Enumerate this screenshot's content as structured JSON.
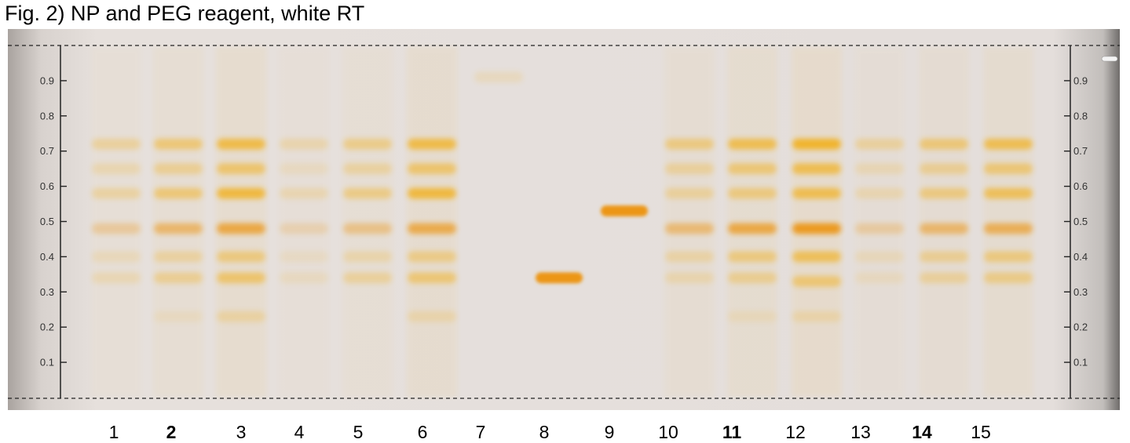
{
  "title": "Fig. 2) NP and PEG reagent, white RT",
  "colors": {
    "plate": "#e8e2de",
    "band_yellow": "#f2b01e",
    "band_orange": "#ec9612",
    "axis": "#222222"
  },
  "axis": {
    "ticks": [
      "0.1",
      "0.2",
      "0.3",
      "0.4",
      "0.5",
      "0.6",
      "0.7",
      "0.8",
      "0.9"
    ],
    "range": [
      0,
      1
    ]
  },
  "lanes": [
    {
      "label": "1",
      "bold": false,
      "bands": [
        [
          0.72,
          0.3
        ],
        [
          0.65,
          0.2
        ],
        [
          0.58,
          0.28
        ],
        [
          0.48,
          0.3
        ],
        [
          0.4,
          0.15
        ],
        [
          0.34,
          0.18
        ]
      ]
    },
    {
      "label": "2",
      "bold": true,
      "bands": [
        [
          0.72,
          0.5
        ],
        [
          0.65,
          0.35
        ],
        [
          0.58,
          0.5
        ],
        [
          0.48,
          0.55
        ],
        [
          0.4,
          0.28
        ],
        [
          0.34,
          0.35
        ],
        [
          0.23,
          0.1
        ]
      ]
    },
    {
      "label": "3",
      "bold": false,
      "bands": [
        [
          0.72,
          0.75
        ],
        [
          0.65,
          0.55
        ],
        [
          0.58,
          0.8
        ],
        [
          0.48,
          0.75
        ],
        [
          0.4,
          0.45
        ],
        [
          0.34,
          0.55
        ],
        [
          0.23,
          0.25
        ]
      ]
    },
    {
      "label": "4",
      "bold": false,
      "bands": [
        [
          0.72,
          0.22
        ],
        [
          0.65,
          0.12
        ],
        [
          0.58,
          0.2
        ],
        [
          0.48,
          0.2
        ],
        [
          0.4,
          0.1
        ],
        [
          0.34,
          0.12
        ]
      ]
    },
    {
      "label": "5",
      "bold": false,
      "bands": [
        [
          0.72,
          0.4
        ],
        [
          0.65,
          0.28
        ],
        [
          0.58,
          0.42
        ],
        [
          0.48,
          0.4
        ],
        [
          0.4,
          0.22
        ],
        [
          0.34,
          0.3
        ]
      ]
    },
    {
      "label": "6",
      "bold": false,
      "bands": [
        [
          0.72,
          0.75
        ],
        [
          0.65,
          0.55
        ],
        [
          0.58,
          0.8
        ],
        [
          0.48,
          0.7
        ],
        [
          0.4,
          0.4
        ],
        [
          0.34,
          0.5
        ],
        [
          0.23,
          0.2
        ]
      ]
    },
    {
      "label": "7",
      "bold": false,
      "bands": [
        [
          0.91,
          0.15
        ]
      ]
    },
    {
      "label": "8",
      "bold": false,
      "bands": [
        [
          0.34,
          1.0
        ]
      ]
    },
    {
      "label": "9",
      "bold": false,
      "bands": [
        [
          0.53,
          1.0
        ]
      ]
    },
    {
      "label": "10",
      "bold": false,
      "bands": [
        [
          0.72,
          0.45
        ],
        [
          0.65,
          0.3
        ],
        [
          0.58,
          0.3
        ],
        [
          0.48,
          0.5
        ],
        [
          0.4,
          0.25
        ],
        [
          0.34,
          0.2
        ]
      ]
    },
    {
      "label": "11",
      "bold": true,
      "bands": [
        [
          0.72,
          0.7
        ],
        [
          0.65,
          0.5
        ],
        [
          0.58,
          0.45
        ],
        [
          0.48,
          0.75
        ],
        [
          0.4,
          0.45
        ],
        [
          0.34,
          0.35
        ],
        [
          0.23,
          0.12
        ]
      ]
    },
    {
      "label": "12",
      "bold": false,
      "bands": [
        [
          0.72,
          0.9
        ],
        [
          0.65,
          0.7
        ],
        [
          0.58,
          0.7
        ],
        [
          0.48,
          0.95
        ],
        [
          0.4,
          0.65
        ],
        [
          0.33,
          0.5
        ],
        [
          0.23,
          0.2
        ]
      ]
    },
    {
      "label": "13",
      "bold": false,
      "bands": [
        [
          0.72,
          0.3
        ],
        [
          0.65,
          0.18
        ],
        [
          0.58,
          0.2
        ],
        [
          0.48,
          0.28
        ],
        [
          0.4,
          0.15
        ],
        [
          0.34,
          0.12
        ]
      ]
    },
    {
      "label": "14",
      "bold": true,
      "bands": [
        [
          0.72,
          0.5
        ],
        [
          0.65,
          0.35
        ],
        [
          0.58,
          0.45
        ],
        [
          0.48,
          0.55
        ],
        [
          0.4,
          0.35
        ],
        [
          0.34,
          0.3
        ]
      ]
    },
    {
      "label": "15",
      "bold": false,
      "bands": [
        [
          0.72,
          0.7
        ],
        [
          0.65,
          0.5
        ],
        [
          0.58,
          0.65
        ],
        [
          0.48,
          0.65
        ],
        [
          0.4,
          0.45
        ],
        [
          0.34,
          0.4
        ]
      ]
    }
  ]
}
